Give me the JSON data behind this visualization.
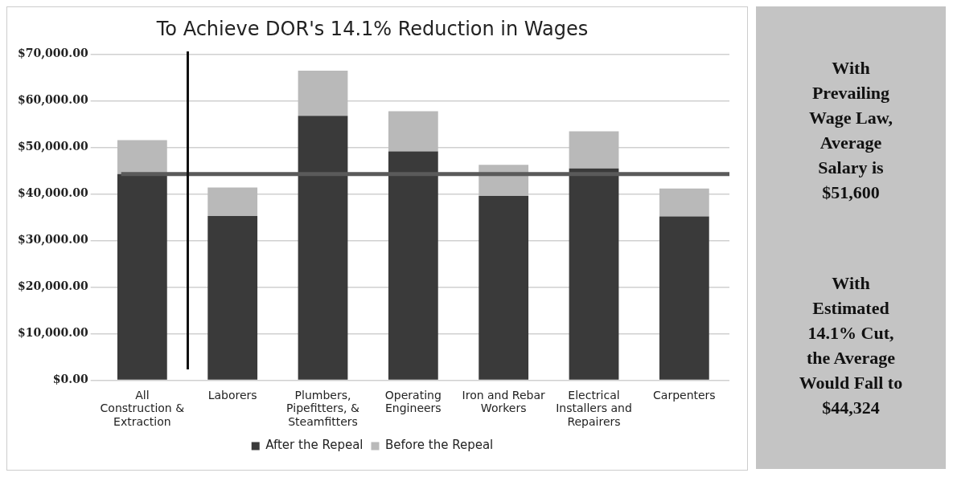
{
  "chart_data": {
    "type": "bar",
    "title": "To Achieve DOR's 14.1% Reduction in Wages",
    "categories": [
      "All Construction & Extraction",
      "Laborers",
      "Plumbers, Pipefitters, & Steamfitters",
      "Operating Engineers",
      "Iron and Rebar Workers",
      "Electrical Installers and Repairers",
      "Carpenters"
    ],
    "series": [
      {
        "name": "After the Repeal",
        "color": "#3a3a3a",
        "values": [
          44300,
          35300,
          56800,
          49200,
          39600,
          45500,
          35200
        ]
      },
      {
        "name": "Before the Repeal",
        "color": "#b9b9b9",
        "values": [
          7300,
          6100,
          9700,
          8600,
          6700,
          8000,
          6000
        ]
      }
    ],
    "stacked": true,
    "ylim": [
      0,
      70000
    ],
    "yticks": [
      {
        "value": 0,
        "label": "$0.00"
      },
      {
        "value": 10000,
        "label": "$10,000.00"
      },
      {
        "value": 20000,
        "label": "$20,000.00"
      },
      {
        "value": 30000,
        "label": "$30,000.00"
      },
      {
        "value": 40000,
        "label": "$40,000.00"
      },
      {
        "value": 50000,
        "label": "$50,000.00"
      },
      {
        "value": 60000,
        "label": "$60,000.00"
      },
      {
        "value": 70000,
        "label": "$70,000.00"
      }
    ],
    "ref_lines": [
      {
        "axis": "y",
        "value": 44324,
        "color": "#5a5a5a"
      }
    ],
    "grid": "y",
    "legend": "bottom",
    "annotations": [
      "With Prevailing Wage Law, Average Salary is $51,600",
      "With Estimated 14.1% Cut, the Average Would Fall to $44,324"
    ]
  }
}
